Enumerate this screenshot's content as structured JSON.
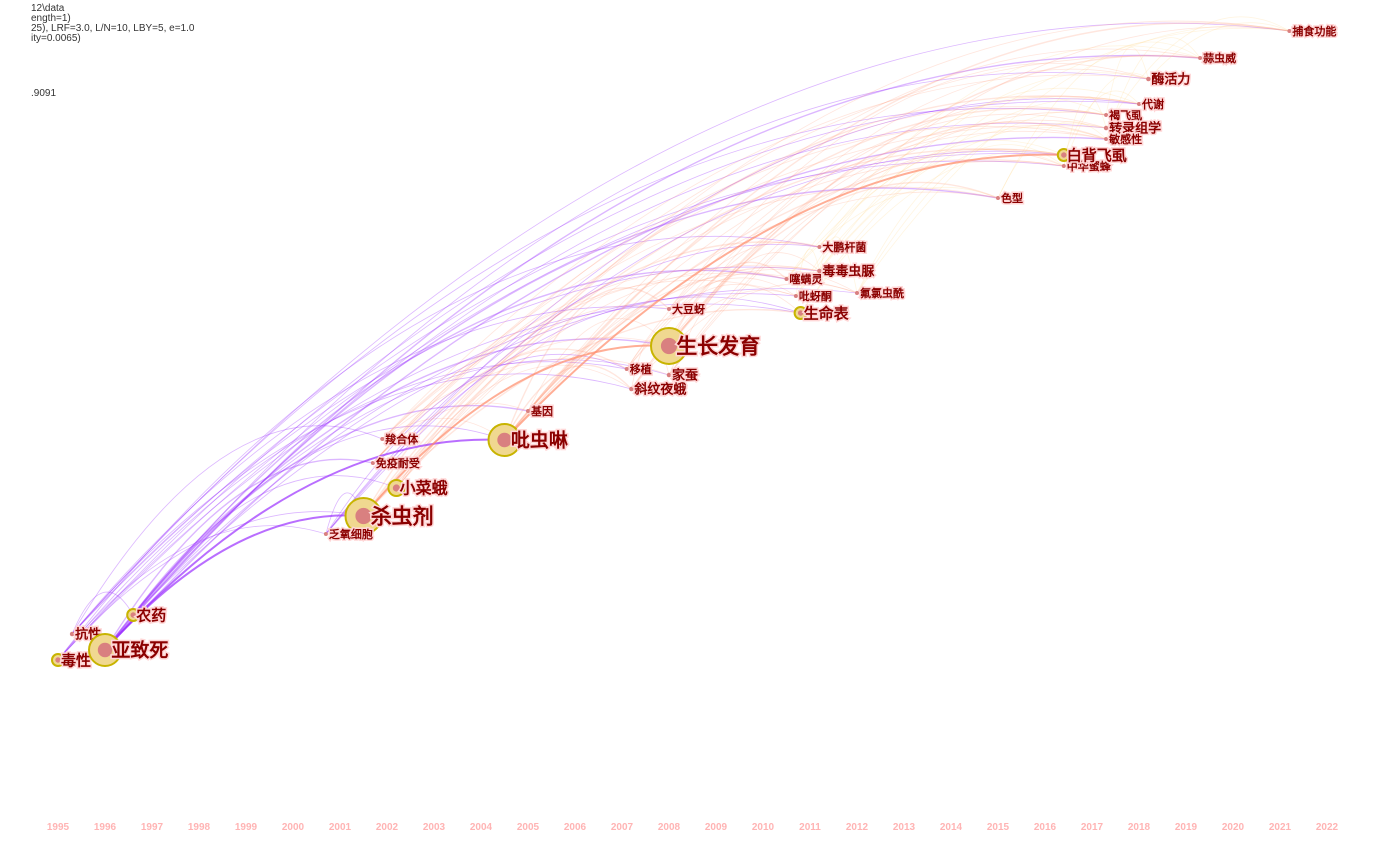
{
  "header": {
    "lines": [
      "12\\data",
      "ength=1)",
      "25), LRF=3.0, L/N=10, LBY=5, e=1.0",
      "ity=0.0065)",
      ".9091"
    ]
  },
  "timeline": {
    "years": [
      "1995",
      "1996",
      "1997",
      "1998",
      "1999",
      "2000",
      "2001",
      "2002",
      "2003",
      "2004",
      "2005",
      "2006",
      "2007",
      "2008",
      "2009",
      "2010",
      "2011",
      "2012",
      "2013",
      "2014",
      "2015",
      "2016",
      "2017",
      "2018",
      "2019",
      "2020",
      "2021",
      "2022"
    ]
  },
  "keywords": [
    {
      "label": "毒性",
      "year": 1995,
      "size": 3
    },
    {
      "label": "抗性",
      "year": 1995.3,
      "size": 2
    },
    {
      "label": "亚致死",
      "year": 1996,
      "size": 5
    },
    {
      "label": "农药",
      "year": 1996.6,
      "size": 3
    },
    {
      "label": "杀虫剂",
      "year": 2001.5,
      "size": 6
    },
    {
      "label": "小菜蛾",
      "year": 2002.2,
      "size": 4
    },
    {
      "label": "免疫耐受",
      "year": 2001.7,
      "size": 1
    },
    {
      "label": "羧合体",
      "year": 2001.9,
      "size": 1
    },
    {
      "label": "乏氧细胞",
      "year": 2000.7,
      "size": 1
    },
    {
      "label": "吡虫啉",
      "year": 2004.5,
      "size": 5
    },
    {
      "label": "基因",
      "year": 2005,
      "size": 1
    },
    {
      "label": "斜纹夜蛾",
      "year": 2007.2,
      "size": 2
    },
    {
      "label": "移植",
      "year": 2007.1,
      "size": 1
    },
    {
      "label": "家蚕",
      "year": 2008,
      "size": 2
    },
    {
      "label": "生长发育",
      "year": 2008,
      "size": 6
    },
    {
      "label": "大豆蚜",
      "year": 2008,
      "size": 1
    },
    {
      "label": "生命表",
      "year": 2010.8,
      "size": 3
    },
    {
      "label": "吡蚜酮",
      "year": 2010.7,
      "size": 1
    },
    {
      "label": "噻螨灵",
      "year": 2010.5,
      "size": 1
    },
    {
      "label": "毒毒虫脲",
      "year": 2011.2,
      "size": 2
    },
    {
      "label": "大鹏杆菌",
      "year": 2011.2,
      "size": 1
    },
    {
      "label": "氟氯虫酰",
      "year": 2012,
      "size": 1
    },
    {
      "label": "色型",
      "year": 2015,
      "size": 1
    },
    {
      "label": "中华蜜蜂",
      "year": 2016.4,
      "size": 1
    },
    {
      "label": "白背飞虱",
      "year": 2016.4,
      "size": 3
    },
    {
      "label": "转录组学",
      "year": 2017.3,
      "size": 2
    },
    {
      "label": "敏感性",
      "year": 2017.3,
      "size": 1
    },
    {
      "label": "褐飞虱",
      "year": 2017.3,
      "size": 1
    },
    {
      "label": "代谢",
      "year": 2018,
      "size": 1
    },
    {
      "label": "酶活力",
      "year": 2018.2,
      "size": 2
    },
    {
      "label": "蒜虫威",
      "year": 2019.3,
      "size": 1
    },
    {
      "label": "捕食功能",
      "year": 2021.2,
      "size": 1
    }
  ],
  "colors": {
    "early_link": "#9b30ff",
    "mid_link": "#ff8c69",
    "late_link": "#ffd27a",
    "label": "#8b0000",
    "year_label": "#ffb4b4",
    "node_ring": "#c8b400"
  }
}
